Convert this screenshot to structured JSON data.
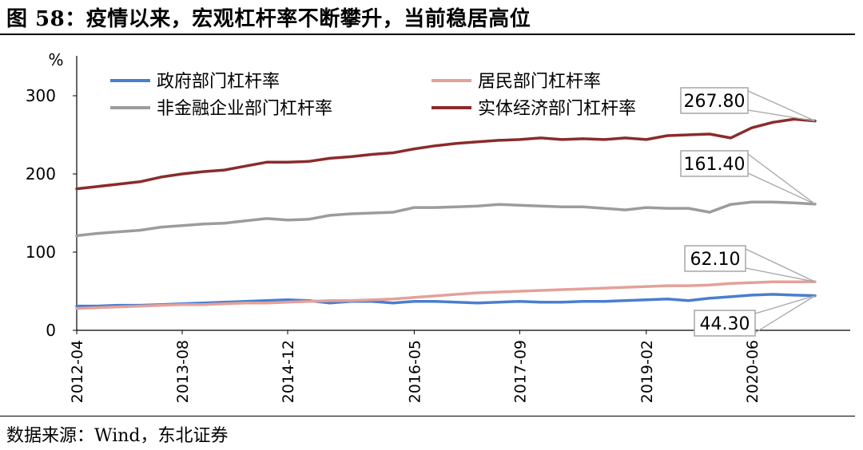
{
  "figure": {
    "title": "图  58：疫情以来，宏观杠杆率不断攀升，当前稳居高位",
    "source": "数据来源：Wind，东北证券"
  },
  "chart_data": {
    "type": "line",
    "ylabel": "%",
    "ylim": [
      0,
      300
    ],
    "yticks": [
      0,
      100,
      200,
      300
    ],
    "x": [
      "2012-04",
      "2012-07",
      "2012-10",
      "2013-01",
      "2013-04",
      "2013-08",
      "2013-11",
      "2014-02",
      "2014-05",
      "2014-08",
      "2014-12",
      "2015-03",
      "2015-06",
      "2015-09",
      "2015-12",
      "2016-02",
      "2016-05",
      "2016-08",
      "2016-11",
      "2017-02",
      "2017-05",
      "2017-09",
      "2017-12",
      "2018-03",
      "2018-06",
      "2018-09",
      "2018-12",
      "2019-02",
      "2019-05",
      "2019-08",
      "2019-11",
      "2020-02",
      "2020-06",
      "2020-09",
      "2020-12",
      "2021-03"
    ],
    "xtick_labels": [
      "2012-04",
      "2013-08",
      "2014-12",
      "2016-05",
      "2017-09",
      "2019-02",
      "2020-06"
    ],
    "series": [
      {
        "name": "政府部门杠杆率",
        "color": "#4a7ecf",
        "values": [
          31,
          31,
          32,
          32,
          33,
          34,
          35,
          36,
          37,
          38,
          39,
          38,
          35,
          37,
          37,
          35,
          37,
          37,
          36,
          35,
          36,
          37,
          36,
          36,
          37,
          37,
          38,
          39,
          40,
          38,
          41,
          43,
          45,
          46,
          45,
          44.3
        ]
      },
      {
        "name": "居民部门杠杆率",
        "color": "#e3a199",
        "values": [
          28,
          29,
          30,
          31,
          32,
          33,
          33,
          34,
          35,
          35,
          36,
          37,
          38,
          38,
          39,
          40,
          42,
          44,
          46,
          48,
          49,
          50,
          51,
          52,
          53,
          54,
          55,
          56,
          57,
          57,
          58,
          60,
          61,
          62,
          62,
          62.1
        ]
      },
      {
        "name": "非金融企业部门杠杆率",
        "color": "#9c9c9c",
        "values": [
          121,
          124,
          126,
          128,
          132,
          134,
          136,
          137,
          140,
          143,
          141,
          142,
          147,
          149,
          150,
          151,
          157,
          157,
          158,
          159,
          161,
          160,
          159,
          158,
          158,
          156,
          154,
          157,
          156,
          156,
          151,
          161,
          164,
          164,
          163,
          161.4
        ]
      },
      {
        "name": "实体经济部门杠杆率",
        "color": "#8b2b2b",
        "values": [
          181,
          184,
          187,
          190,
          196,
          200,
          203,
          205,
          210,
          215,
          215,
          216,
          220,
          222,
          225,
          227,
          232,
          236,
          239,
          241,
          243,
          244,
          246,
          244,
          245,
          244,
          246,
          244,
          249,
          250,
          251,
          246,
          259,
          266,
          270,
          267.8
        ]
      }
    ],
    "annotations": [
      {
        "label": "267.80",
        "value": 267.8
      },
      {
        "label": "161.40",
        "value": 161.4
      },
      {
        "label": "62.10",
        "value": 62.1
      },
      {
        "label": "44.30",
        "value": 44.3
      }
    ]
  }
}
